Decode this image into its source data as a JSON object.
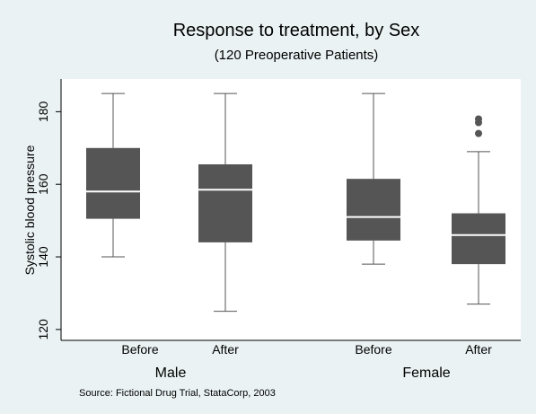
{
  "chart_data": {
    "type": "box",
    "title": "Response to treatment, by Sex",
    "subtitle": "(120 Preoperative Patients)",
    "ylabel": "Systolic blood pressure",
    "ylim": [
      117,
      189
    ],
    "yticks": [
      120,
      140,
      160,
      180
    ],
    "grid": false,
    "note": "Source:  Fictional Drug Trial, StataCorp, 2003",
    "groups": [
      "Male",
      "Female"
    ],
    "boxes": [
      {
        "group": "Male",
        "label": "Before",
        "whisker_low": 140,
        "q1": 150.5,
        "median": 158,
        "q3": 170,
        "whisker_high": 185,
        "outliers": []
      },
      {
        "group": "Male",
        "label": "After",
        "whisker_low": 125,
        "q1": 144,
        "median": 158.5,
        "q3": 165.5,
        "whisker_high": 185,
        "outliers": []
      },
      {
        "group": "Female",
        "label": "Before",
        "whisker_low": 138,
        "q1": 144.5,
        "median": 151,
        "q3": 161.5,
        "whisker_high": 185,
        "outliers": []
      },
      {
        "group": "Female",
        "label": "After",
        "whisker_low": 127,
        "q1": 138,
        "median": 146,
        "q3": 152,
        "whisker_high": 169,
        "outliers": [
          174,
          177,
          178
        ]
      }
    ],
    "colors": {
      "background": "#eaf2f3",
      "plot": "#ffffff",
      "box": "#555555",
      "median": "#ffffff",
      "axis": "#000000",
      "text": "#000000"
    }
  }
}
